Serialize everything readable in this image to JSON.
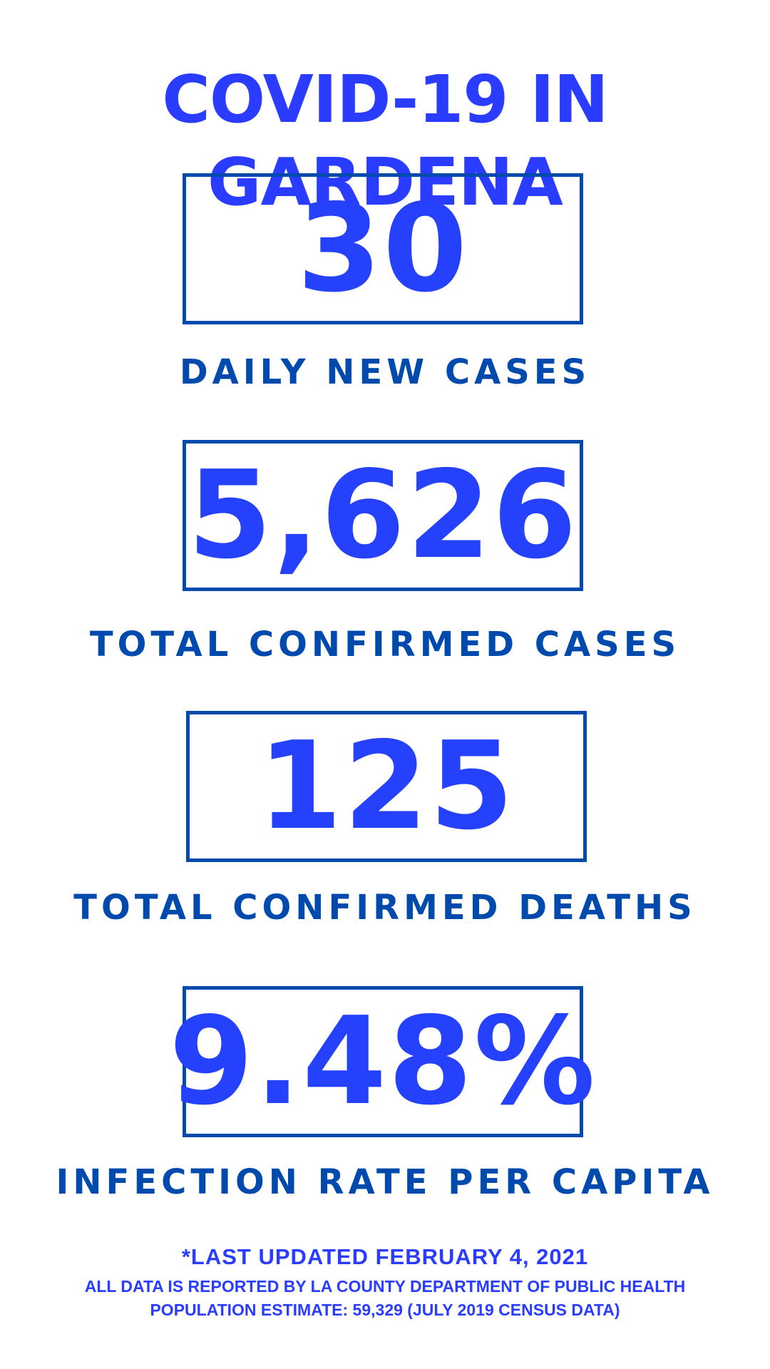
{
  "title": "COVID-19 IN GARDENA",
  "colors": {
    "title": "#2a3cff",
    "number": "#2541fc",
    "label_and_border": "#004aad",
    "background": "#ffffff"
  },
  "stats": [
    {
      "value": "30",
      "label": "DAILY NEW CASES"
    },
    {
      "value": "5,626",
      "label": "TOTAL CONFIRMED CASES"
    },
    {
      "value": "125",
      "label": "TOTAL CONFIRMED DEATHS"
    },
    {
      "value": "9.48%",
      "label": "INFECTION RATE PER CAPITA"
    }
  ],
  "footer": {
    "updated": "*LAST UPDATED FEBRUARY 4, 2021",
    "source": "ALL DATA IS REPORTED BY LA COUNTY DEPARTMENT OF PUBLIC HEALTH",
    "population": "POPULATION ESTIMATE: 59,329 (JULY 2019 CENSUS DATA)"
  }
}
